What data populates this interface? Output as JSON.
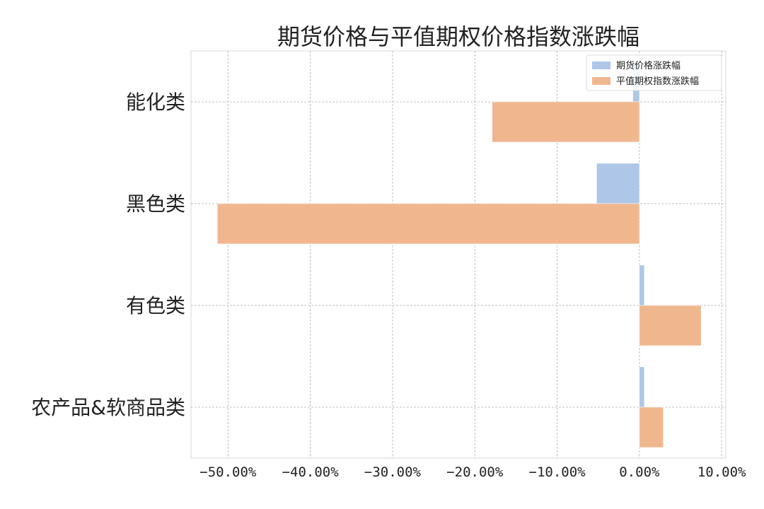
{
  "chart_data": {
    "type": "bar",
    "orientation": "horizontal",
    "title": "期货价格与平值期权价格指数涨跌幅",
    "categories": [
      "能化类",
      "黑色类",
      "有色类",
      "农产品&软商品类"
    ],
    "series": [
      {
        "name": "期货价格涨跌幅",
        "color": "#aec7e8",
        "values": [
          -0.8,
          -5.2,
          0.6,
          0.6
        ]
      },
      {
        "name": "平值期权指数涨跌幅",
        "color": "#f0b78f",
        "values": [
          -17.9,
          -51.3,
          7.5,
          2.9
        ]
      }
    ],
    "xlim": [
      -54.5,
      10.5
    ],
    "xticks": [
      -50,
      -40,
      -30,
      -20,
      -10,
      0,
      10
    ],
    "xtick_labels": [
      "−50.00%",
      "−40.00%",
      "−30.00%",
      "−20.00%",
      "−10.00%",
      "0.00%",
      "10.00%"
    ],
    "xlabel": "",
    "ylabel": "",
    "grid": true,
    "legend_position": "top-right"
  }
}
